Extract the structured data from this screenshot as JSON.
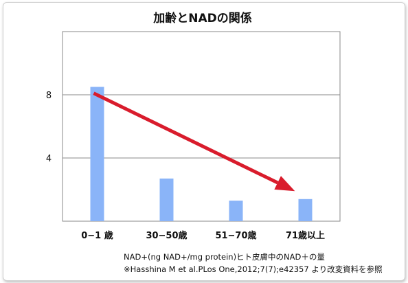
{
  "chart_data": {
    "type": "bar",
    "title": "加齢とNADの関係",
    "categories": [
      "0−1 歳",
      "30−50歳",
      "51−70歳",
      "71歳以上"
    ],
    "values": [
      8.5,
      2.7,
      1.3,
      1.4
    ],
    "yticks": [
      {
        "value": 4,
        "label": "4"
      },
      {
        "value": 8,
        "label": "8"
      }
    ],
    "ylim": [
      0,
      12
    ],
    "grid": true,
    "bar_color": "#8ab4f8",
    "arrow_color": "#d91c2c",
    "trend_arrow": {
      "from": [
        0.45,
        8.1
      ],
      "to": [
        3.35,
        1.9
      ]
    }
  },
  "notes": {
    "line1": "NAD+(ng NAD+/mg protein)ヒト皮膚中のNAD＋の量",
    "line2": "※Hasshina M et al.PLos One,2012;7(7);e42357 より改変資料を参照"
  }
}
